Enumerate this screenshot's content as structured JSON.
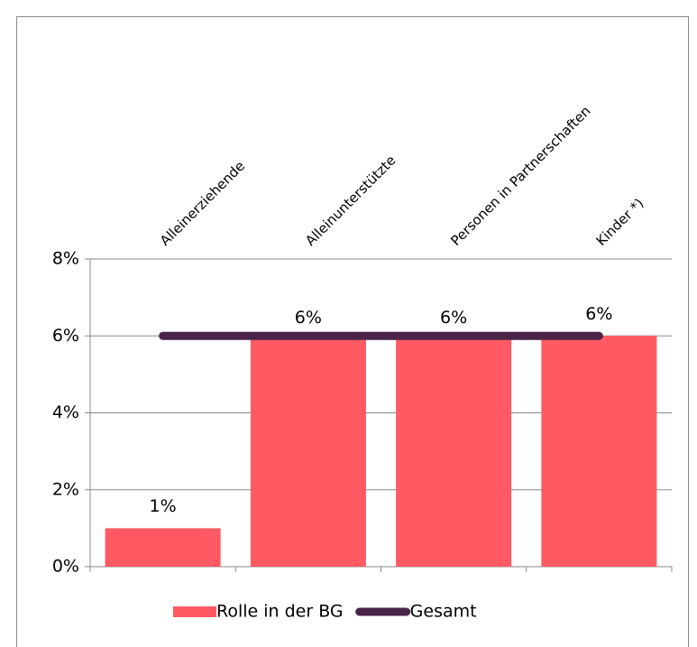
{
  "chart_data": {
    "type": "bar_line",
    "categories": [
      "Alleinerziehende",
      "Alleinunterstützte",
      "Personen in Partnerschaften",
      "Kinder *)"
    ],
    "series": [
      {
        "name": "Rolle in der BG",
        "type": "bar",
        "color": "#ff5a64",
        "values": [
          1,
          5.9,
          5.9,
          6
        ],
        "value_labels": [
          "1%",
          "6%",
          "6%",
          "6%"
        ]
      },
      {
        "name": "Gesamt",
        "type": "line",
        "color": "#4a2448",
        "values": [
          6,
          6,
          6,
          6
        ]
      }
    ],
    "ylim": [
      0,
      8
    ],
    "yticks": [
      {
        "value": 0,
        "label": "0%"
      },
      {
        "value": 2,
        "label": "2%"
      },
      {
        "value": 4,
        "label": "4%"
      },
      {
        "value": 6,
        "label": "6%"
      },
      {
        "value": 8,
        "label": "8%"
      }
    ],
    "grid": true,
    "legend": "bottom"
  }
}
